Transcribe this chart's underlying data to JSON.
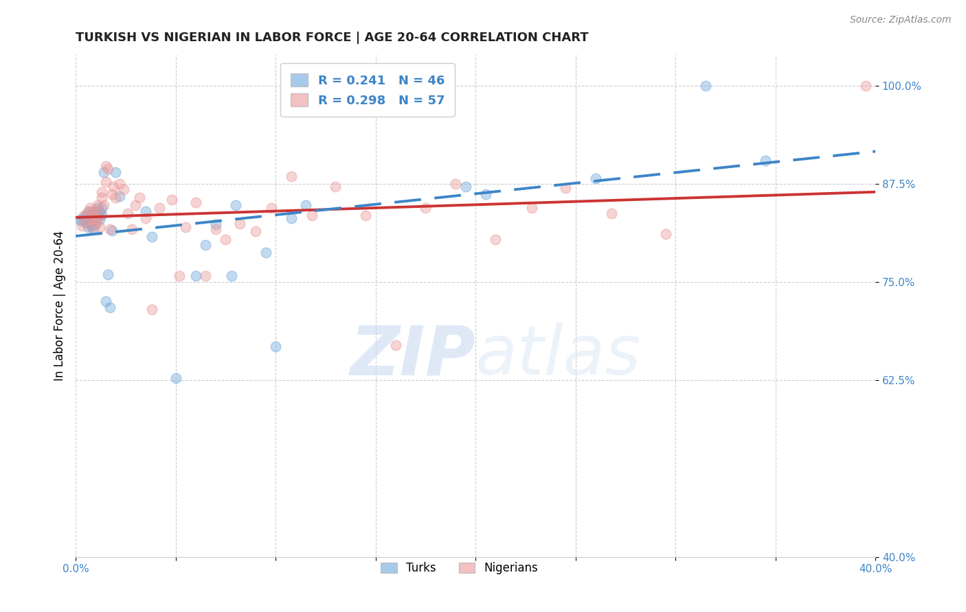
{
  "title": "TURKISH VS NIGERIAN IN LABOR FORCE | AGE 20-64 CORRELATION CHART",
  "source": "Source: ZipAtlas.com",
  "ylabel": "In Labor Force | Age 20-64",
  "xlim": [
    0.0,
    0.4
  ],
  "ylim": [
    0.4,
    1.04
  ],
  "xticks": [
    0.0,
    0.05,
    0.1,
    0.15,
    0.2,
    0.25,
    0.3,
    0.35,
    0.4
  ],
  "xtick_labels": [
    "0.0%",
    "",
    "",
    "",
    "",
    "",
    "",
    "",
    "40.0%"
  ],
  "ytick_labels": [
    "40.0%",
    "62.5%",
    "75.0%",
    "87.5%",
    "100.0%"
  ],
  "yticks": [
    0.4,
    0.625,
    0.75,
    0.875,
    1.0
  ],
  "turks_R": 0.241,
  "turks_N": 46,
  "nigerians_R": 0.298,
  "nigerians_N": 57,
  "turks_color": "#6fa8dc",
  "nigerians_color": "#ea9999",
  "turks_line_color": "#3d85c8",
  "nigerians_line_color": "#cc3333",
  "watermark_zip": "ZIP",
  "watermark_atlas": "atlas",
  "background_color": "#ffffff",
  "turks_x": [
    0.002,
    0.003,
    0.004,
    0.005,
    0.005,
    0.006,
    0.006,
    0.007,
    0.007,
    0.008,
    0.008,
    0.009,
    0.009,
    0.01,
    0.01,
    0.01,
    0.011,
    0.011,
    0.012,
    0.012,
    0.013,
    0.013,
    0.014,
    0.015,
    0.016,
    0.017,
    0.018,
    0.02,
    0.022,
    0.035,
    0.038,
    0.05,
    0.06,
    0.065,
    0.07,
    0.078,
    0.08,
    0.095,
    0.1,
    0.108,
    0.115,
    0.195,
    0.205,
    0.26,
    0.315,
    0.345
  ],
  "turks_y": [
    0.83,
    0.828,
    0.832,
    0.826,
    0.835,
    0.82,
    0.838,
    0.825,
    0.84,
    0.822,
    0.836,
    0.818,
    0.832,
    0.825,
    0.84,
    0.83,
    0.836,
    0.845,
    0.84,
    0.83,
    0.836,
    0.845,
    0.89,
    0.726,
    0.76,
    0.718,
    0.816,
    0.89,
    0.86,
    0.84,
    0.808,
    0.628,
    0.758,
    0.798,
    0.824,
    0.758,
    0.848,
    0.788,
    0.668,
    0.832,
    0.848,
    0.872,
    0.862,
    0.882,
    1.0,
    0.905
  ],
  "nigerians_x": [
    0.003,
    0.004,
    0.005,
    0.006,
    0.007,
    0.007,
    0.008,
    0.008,
    0.009,
    0.01,
    0.01,
    0.011,
    0.011,
    0.012,
    0.012,
    0.013,
    0.013,
    0.014,
    0.015,
    0.015,
    0.016,
    0.017,
    0.018,
    0.019,
    0.02,
    0.022,
    0.024,
    0.026,
    0.028,
    0.03,
    0.032,
    0.035,
    0.038,
    0.042,
    0.048,
    0.052,
    0.055,
    0.06,
    0.065,
    0.07,
    0.075,
    0.082,
    0.09,
    0.098,
    0.108,
    0.118,
    0.13,
    0.145,
    0.16,
    0.175,
    0.19,
    0.21,
    0.228,
    0.245,
    0.268,
    0.295,
    0.395
  ],
  "nigerians_y": [
    0.822,
    0.835,
    0.828,
    0.84,
    0.83,
    0.845,
    0.82,
    0.838,
    0.832,
    0.825,
    0.842,
    0.83,
    0.848,
    0.82,
    0.835,
    0.865,
    0.858,
    0.848,
    0.898,
    0.878,
    0.895,
    0.818,
    0.862,
    0.872,
    0.858,
    0.875,
    0.868,
    0.838,
    0.818,
    0.848,
    0.858,
    0.832,
    0.715,
    0.845,
    0.855,
    0.758,
    0.82,
    0.852,
    0.758,
    0.818,
    0.805,
    0.825,
    0.815,
    0.845,
    0.885,
    0.835,
    0.872,
    0.835,
    0.67,
    0.845,
    0.875,
    0.805,
    0.845,
    0.87,
    0.838,
    0.812,
    1.0
  ]
}
